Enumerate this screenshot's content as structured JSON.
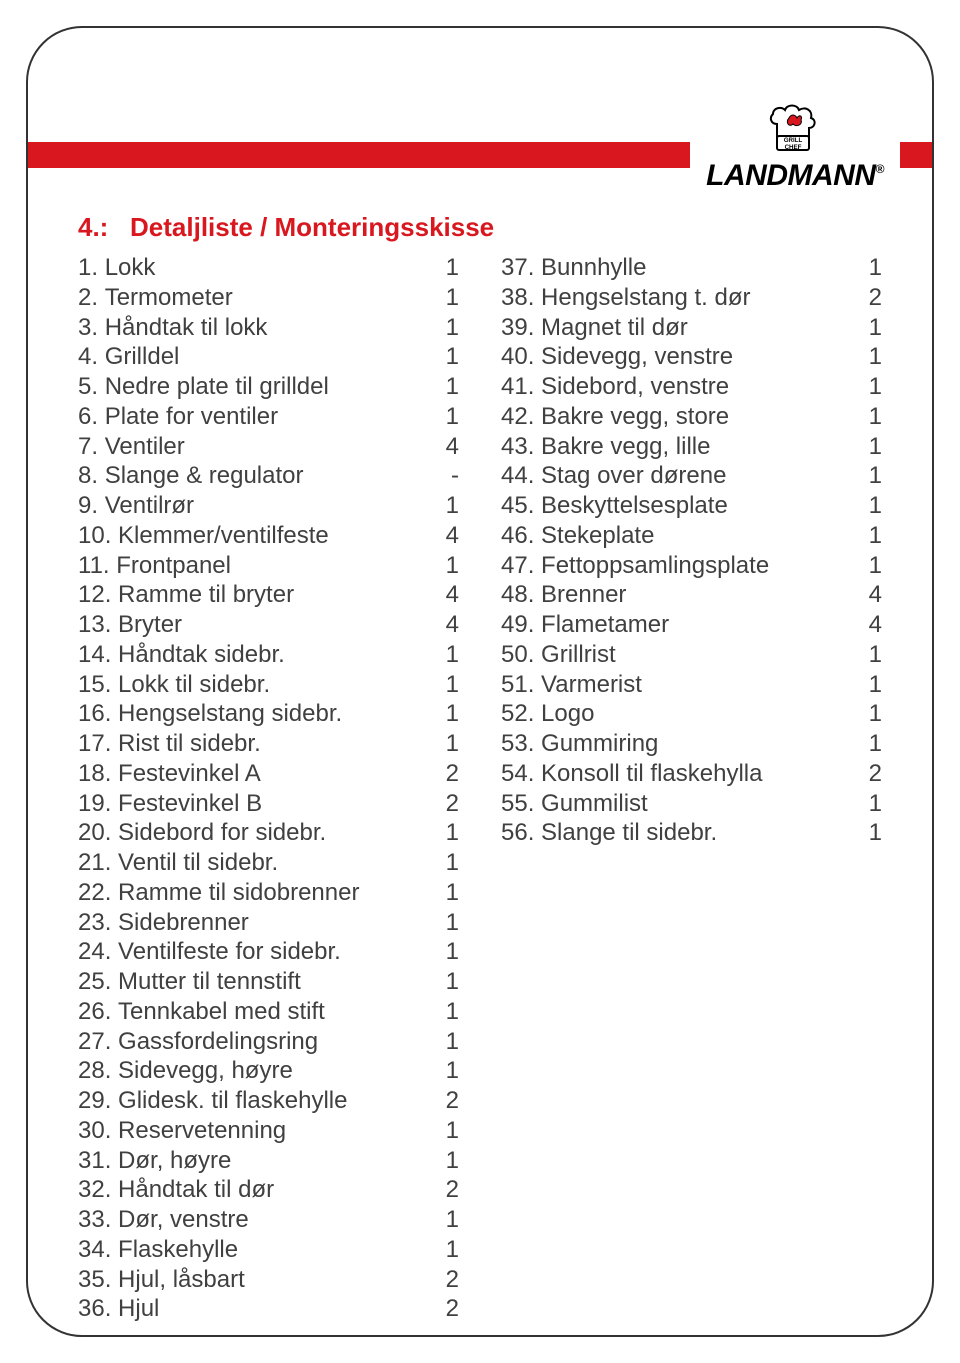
{
  "brand": "LANDMANN",
  "badge_top": "GRILL",
  "badge_bottom": "CHEF",
  "colors": {
    "accent": "#d9171e",
    "text": "#404040",
    "border": "#333333",
    "background": "#ffffff"
  },
  "title_prefix": "4.:",
  "title_text": "Detaljliste / Monteringsskisse",
  "left": [
    {
      "n": "1.",
      "label": "Lokk",
      "qty": "1"
    },
    {
      "n": "2.",
      "label": "Termometer",
      "qty": "1"
    },
    {
      "n": "3.",
      "label": "Håndtak til lokk",
      "qty": "1"
    },
    {
      "n": "4.",
      "label": "Grilldel",
      "qty": "1"
    },
    {
      "n": "5.",
      "label": "Nedre plate til grilldel",
      "qty": "1"
    },
    {
      "n": "6.",
      "label": "Plate for ventiler",
      "qty": "1"
    },
    {
      "n": "7.",
      "label": "Ventiler",
      "qty": "4"
    },
    {
      "n": "8.",
      "label": "Slange & regulator",
      "qty": "-"
    },
    {
      "n": "9.",
      "label": "Ventilrør",
      "qty": "1"
    },
    {
      "n": "10.",
      "label": "Klemmer/ventilfeste",
      "qty": "4"
    },
    {
      "n": "11.",
      "label": "Frontpanel",
      "qty": "1"
    },
    {
      "n": "12.",
      "label": "Ramme til bryter",
      "qty": "4"
    },
    {
      "n": "13.",
      "label": "Bryter",
      "qty": "4"
    },
    {
      "n": "14.",
      "label": "Håndtak sidebr.",
      "qty": "1"
    },
    {
      "n": "15.",
      "label": "Lokk til sidebr.",
      "qty": "1"
    },
    {
      "n": "16.",
      "label": "Hengselstang sidebr.",
      "qty": "1"
    },
    {
      "n": "17.",
      "label": "Rist til sidebr.",
      "qty": "1"
    },
    {
      "n": "18.",
      "label": "Festevinkel A",
      "qty": "2"
    },
    {
      "n": "19.",
      "label": "Festevinkel B",
      "qty": "2"
    },
    {
      "n": "20.",
      "label": "Sidebord for sidebr.",
      "qty": "1"
    },
    {
      "n": "21.",
      "label": "Ventil til sidebr.",
      "qty": "1"
    },
    {
      "n": "22.",
      "label": "Ramme til sidobrenner",
      "qty": "1"
    },
    {
      "n": "23.",
      "label": "Sidebrenner",
      "qty": "1"
    },
    {
      "n": "24.",
      "label": "Ventilfeste for sidebr.",
      "qty": "1"
    },
    {
      "n": "25.",
      "label": "Mutter til tennstift",
      "qty": "1"
    },
    {
      "n": "26.",
      "label": "Tennkabel med stift",
      "qty": "1"
    },
    {
      "n": "27.",
      "label": "Gassfordelingsring",
      "qty": "1"
    },
    {
      "n": "28.",
      "label": "Sidevegg, høyre",
      "qty": "1"
    },
    {
      "n": "29.",
      "label": "Glidesk. til flaskehylle",
      "qty": "2"
    },
    {
      "n": "30.",
      "label": "Reservetenning",
      "qty": "1"
    },
    {
      "n": "31.",
      "label": "Dør, høyre",
      "qty": "1"
    },
    {
      "n": "32.",
      "label": "Håndtak til dør",
      "qty": "2"
    },
    {
      "n": "33.",
      "label": "Dør, venstre",
      "qty": "1"
    },
    {
      "n": "34.",
      "label": "Flaskehylle",
      "qty": "1"
    },
    {
      "n": "35.",
      "label": "Hjul, låsbart",
      "qty": "2"
    },
    {
      "n": "36.",
      "label": "Hjul",
      "qty": "2"
    }
  ],
  "right": [
    {
      "n": "37.",
      "label": "Bunnhylle",
      "qty": "1"
    },
    {
      "n": "38.",
      "label": "Hengselstang t. dør",
      "qty": "2"
    },
    {
      "n": "39.",
      "label": "Magnet til dør",
      "qty": "1"
    },
    {
      "n": "40.",
      "label": "Sidevegg, venstre",
      "qty": "1"
    },
    {
      "n": "41.",
      "label": "Sidebord, venstre",
      "qty": "1"
    },
    {
      "n": "42.",
      "label": "Bakre vegg, store",
      "qty": "1"
    },
    {
      "n": "43.",
      "label": "Bakre vegg, lille",
      "qty": "1"
    },
    {
      "n": "44.",
      "label": "Stag over dørene",
      "qty": "1"
    },
    {
      "n": "45.",
      "label": "Beskyttelsesplate",
      "qty": "1"
    },
    {
      "n": "46.",
      "label": "Stekeplate",
      "qty": "1"
    },
    {
      "n": "47.",
      "label": "Fettoppsamlingsplate",
      "qty": "1"
    },
    {
      "n": "48.",
      "label": "Brenner",
      "qty": "4"
    },
    {
      "n": "49.",
      "label": "Flametamer",
      "qty": "4"
    },
    {
      "n": "50.",
      "label": "Grillrist",
      "qty": "1"
    },
    {
      "n": "51.",
      "label": "Varmerist",
      "qty": "1"
    },
    {
      "n": "52.",
      "label": "Logo",
      "qty": "1"
    },
    {
      "n": "53.",
      "label": "Gummiring",
      "qty": "1"
    },
    {
      "n": "54.",
      "label": "Konsoll til flaskehylla",
      "qty": "2"
    },
    {
      "n": "55.",
      "label": "Gummilist",
      "qty": "1"
    },
    {
      "n": "56.",
      "label": "Slange til sidebr.",
      "qty": "1"
    }
  ]
}
